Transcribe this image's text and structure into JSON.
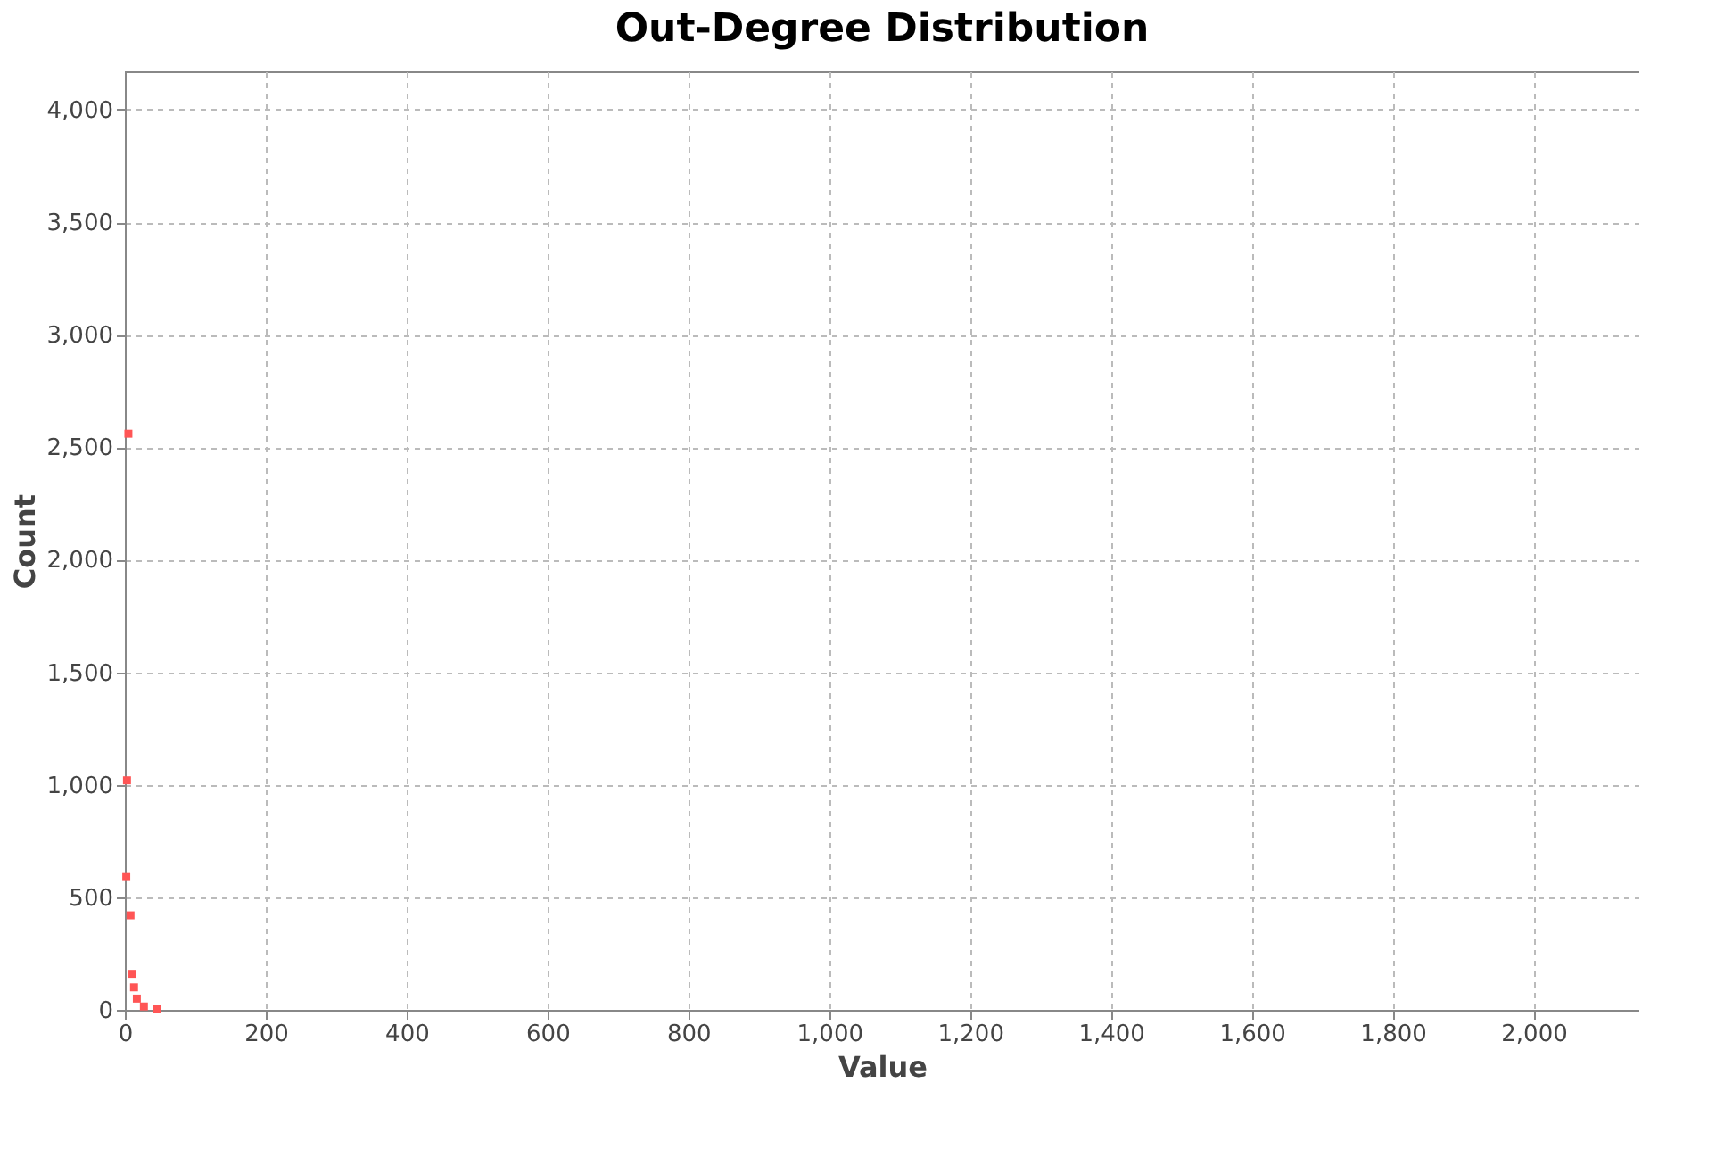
{
  "chart_data": {
    "type": "scatter",
    "title": "Out-Degree Distribution",
    "xlabel": "Value",
    "ylabel": "Count",
    "x": [
      5,
      3,
      2,
      8,
      10,
      13,
      17,
      27,
      45
    ],
    "series": [
      {
        "color": "#ff5555",
        "values": [
          2560,
          1020,
          590,
          420,
          160,
          100,
          50,
          15,
          3
        ]
      }
    ],
    "xlim": [
      0,
      2150
    ],
    "xticks": [
      {
        "value": 0,
        "label": "0"
      },
      {
        "value": 200,
        "label": "200"
      },
      {
        "value": 400,
        "label": "400"
      },
      {
        "value": 600,
        "label": "600"
      },
      {
        "value": 800,
        "label": "800"
      },
      {
        "value": 1000,
        "label": "1,000"
      },
      {
        "value": 1200,
        "label": "1,200"
      },
      {
        "value": 1400,
        "label": "1,400"
      },
      {
        "value": 1600,
        "label": "1,600"
      },
      {
        "value": 1800,
        "label": "1,800"
      },
      {
        "value": 2000,
        "label": "2,000"
      }
    ],
    "ylim": [
      0,
      4170
    ],
    "yticks": [
      {
        "value": 0,
        "label": "0"
      },
      {
        "value": 500,
        "label": "500"
      },
      {
        "value": 1000,
        "label": "1,000"
      },
      {
        "value": 1500,
        "label": "1,500"
      },
      {
        "value": 2000,
        "label": "2,000"
      },
      {
        "value": 2500,
        "label": "2,500"
      },
      {
        "value": 3000,
        "label": "3,000"
      },
      {
        "value": 3500,
        "label": "3,500"
      },
      {
        "value": 4000,
        "label": "4,000"
      }
    ],
    "grid": true,
    "marker": "square"
  }
}
